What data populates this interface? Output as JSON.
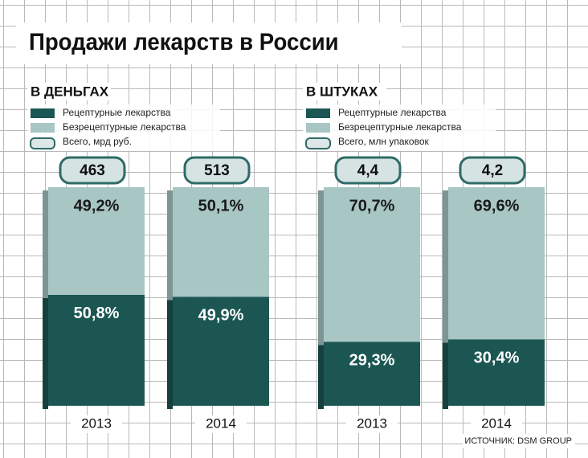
{
  "title": "Продажи лекарств в России",
  "source": "ИСТОЧНИК: DSM GROUP",
  "chart_data": [
    {
      "type": "bar",
      "stacked": true,
      "title": "В ДЕНЬГАХ",
      "categories": [
        "2013",
        "2014"
      ],
      "series": [
        {
          "name": "Рецептурные лекарства",
          "color": "#1b5653",
          "values": [
            50.8,
            49.9
          ],
          "value_labels": [
            "50,8%",
            "49,9%"
          ]
        },
        {
          "name": "Безрецептурные лекарства",
          "color": "#a7c6c4",
          "values": [
            49.2,
            50.1
          ],
          "value_labels": [
            "49,2%",
            "50,1%"
          ]
        }
      ],
      "totals": {
        "name": "Всего, мрд руб.",
        "values": [
          463,
          513
        ]
      }
    },
    {
      "type": "bar",
      "stacked": true,
      "title": "В ШТУКАХ",
      "categories": [
        "2013",
        "2014"
      ],
      "series": [
        {
          "name": "Рецептурные лекарства",
          "color": "#1b5653",
          "values": [
            29.3,
            30.4
          ],
          "value_labels": [
            "29,3%",
            "30,4%"
          ]
        },
        {
          "name": "Безрецептурные лекарства",
          "color": "#a7c6c4",
          "values": [
            70.7,
            69.6
          ],
          "value_labels": [
            "70,7%",
            "69,6%"
          ]
        }
      ],
      "totals": {
        "name": "Всего, млн упаковок",
        "values": [
          4.4,
          4.2
        ],
        "value_labels": [
          "4,4",
          "4,2"
        ]
      }
    }
  ]
}
